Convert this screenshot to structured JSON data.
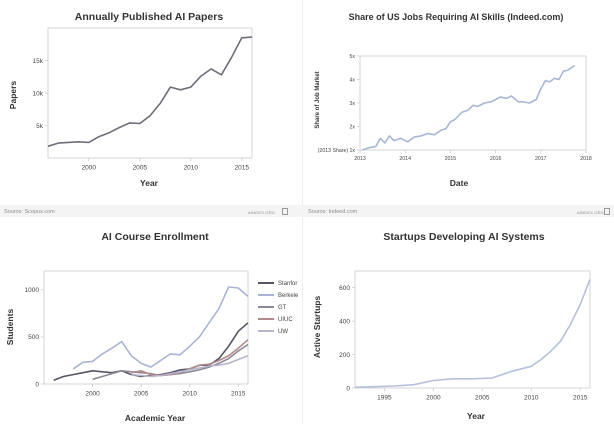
{
  "colors": {
    "axis": "#cccccc",
    "tick_text": "#444444",
    "title": "#333333",
    "papers_line": "#6e6e7a",
    "jobs_line": "#a8b6d6",
    "startups_line": "#b4c0dc",
    "stanford": "#555566",
    "berkeley": "#a8b4d6",
    "gt": "#8a8a96",
    "uiuc": "#b08a8a",
    "uw": "#b8b4cc"
  },
  "footer": {
    "left_source": "Source: Scopus.com",
    "right_source": "Source: Indeed.com",
    "credit": "AINDEX.ORG"
  },
  "chart_data": [
    {
      "id": "papers",
      "type": "line",
      "title": "Annually Published AI Papers",
      "xlabel": "Year",
      "ylabel": "Papers",
      "xlim": [
        1996,
        2016
      ],
      "ylim": [
        0,
        20000
      ],
      "xticks": [
        2000,
        2005,
        2010,
        2015
      ],
      "xtick_labels": [
        "2000",
        "2005",
        "2010",
        "2015"
      ],
      "yticks": [
        5000,
        10000,
        15000
      ],
      "ytick_labels": [
        "5k",
        "10k",
        "15k"
      ],
      "series": [
        {
          "color": "#6e6e7a",
          "x": [
            1996,
            1997,
            1998,
            1999,
            2000,
            2001,
            2002,
            2003,
            2004,
            2005,
            2006,
            2007,
            2008,
            2009,
            2010,
            2011,
            2012,
            2013,
            2014,
            2015,
            2016
          ],
          "y": [
            1800,
            2300,
            2400,
            2500,
            2400,
            3300,
            3900,
            4700,
            5400,
            5300,
            6500,
            8400,
            10900,
            10500,
            10900,
            12600,
            13700,
            12800,
            15500,
            18500,
            18600
          ]
        }
      ]
    },
    {
      "id": "jobs",
      "type": "line",
      "title": "Share of US Jobs Requiring AI Skills (Indeed.com)",
      "xlabel": "Date",
      "ylabel": "Share of Job Market",
      "xlim": [
        2013,
        2018
      ],
      "ylim": [
        1,
        5
      ],
      "xticks": [
        2013,
        2014,
        2015,
        2016,
        2017,
        2018
      ],
      "xtick_labels": [
        "2013",
        "2014",
        "2015",
        "2016",
        "2017",
        "2018"
      ],
      "yticks": [
        1,
        2,
        3,
        4,
        5
      ],
      "ytick_labels": [
        "(2013 Share) 1x",
        "2x",
        "3x",
        "4x",
        "5x"
      ],
      "series": [
        {
          "color": "#a8b6d6",
          "x": [
            2013.05,
            2013.2,
            2013.35,
            2013.45,
            2013.55,
            2013.65,
            2013.75,
            2013.9,
            2014.05,
            2014.2,
            2014.35,
            2014.5,
            2014.65,
            2014.8,
            2014.9,
            2015.0,
            2015.1,
            2015.25,
            2015.4,
            2015.5,
            2015.6,
            2015.75,
            2015.9,
            2016.0,
            2016.1,
            2016.25,
            2016.35,
            2016.5,
            2016.6,
            2016.75,
            2016.9,
            2017.0,
            2017.1,
            2017.2,
            2017.3,
            2017.4,
            2017.5,
            2017.6,
            2017.75
          ],
          "y": [
            1.0,
            1.1,
            1.15,
            1.5,
            1.3,
            1.6,
            1.4,
            1.5,
            1.35,
            1.55,
            1.6,
            1.7,
            1.65,
            1.85,
            1.9,
            2.2,
            2.3,
            2.6,
            2.7,
            2.9,
            2.85,
            3.0,
            3.05,
            3.15,
            3.25,
            3.2,
            3.3,
            3.05,
            3.05,
            3.0,
            3.15,
            3.6,
            3.95,
            3.9,
            4.05,
            4.0,
            4.35,
            4.4,
            4.6
          ]
        }
      ]
    },
    {
      "id": "courses",
      "type": "line",
      "title": "AI Course Enrollment",
      "xlabel": "Academic Year",
      "ylabel": "Students",
      "xlim": [
        1995,
        2016
      ],
      "ylim": [
        0,
        1200
      ],
      "xticks": [
        2000,
        2005,
        2010,
        2015
      ],
      "xtick_labels": [
        "2000",
        "2005",
        "2010",
        "2015"
      ],
      "yticks": [
        0,
        500,
        1000
      ],
      "ytick_labels": [
        "0",
        "500",
        "1000"
      ],
      "legend_position": "right",
      "series": [
        {
          "name": "Stanfor",
          "color": "#555566",
          "x": [
            1996,
            1997,
            1998,
            1999,
            2000,
            2001,
            2002,
            2003,
            2004,
            2005,
            2006,
            2007,
            2008,
            2009,
            2010,
            2011,
            2012,
            2013,
            2014,
            2015,
            2016
          ],
          "y": [
            40,
            80,
            100,
            120,
            140,
            130,
            120,
            140,
            100,
            80,
            90,
            100,
            120,
            150,
            160,
            200,
            200,
            270,
            400,
            560,
            650
          ]
        },
        {
          "name": "Berkeley",
          "color": "#a8b4d6",
          "x": [
            1998,
            1999,
            2000,
            2001,
            2002,
            2003,
            2004,
            2005,
            2006,
            2007,
            2008,
            2009,
            2010,
            2011,
            2012,
            2013,
            2014,
            2015,
            2016
          ],
          "y": [
            160,
            230,
            240,
            320,
            380,
            450,
            300,
            220,
            180,
            250,
            320,
            310,
            400,
            500,
            650,
            800,
            1030,
            1020,
            930
          ]
        },
        {
          "name": "GT",
          "color": "#8a8a96",
          "x": [
            2000,
            2001,
            2002,
            2003,
            2004,
            2005,
            2006,
            2007,
            2008,
            2009,
            2010,
            2011,
            2012,
            2013,
            2014,
            2015,
            2016
          ],
          "y": [
            50,
            80,
            110,
            140,
            130,
            120,
            110,
            90,
            100,
            110,
            130,
            150,
            180,
            220,
            270,
            350,
            420
          ]
        },
        {
          "name": "UIUC",
          "color": "#b08a8a",
          "x": [
            2004,
            2005,
            2006,
            2007,
            2008,
            2009,
            2010,
            2011,
            2012,
            2013,
            2014,
            2015,
            2016
          ],
          "y": [
            120,
            140,
            100,
            90,
            100,
            120,
            160,
            200,
            210,
            250,
            300,
            380,
            470
          ]
        },
        {
          "name": "UW",
          "color": "#b8b4cc",
          "x": [
            2004,
            2005,
            2006,
            2007,
            2008,
            2009,
            2010,
            2011,
            2012,
            2013,
            2014,
            2015,
            2016
          ],
          "y": [
            100,
            90,
            80,
            90,
            110,
            130,
            150,
            170,
            190,
            200,
            220,
            260,
            300
          ]
        }
      ]
    },
    {
      "id": "startups",
      "type": "line",
      "title": "Startups Developing AI Systems",
      "xlabel": "Year",
      "ylabel": "Active Startups",
      "xlim": [
        1992,
        2016
      ],
      "ylim": [
        0,
        700
      ],
      "xticks": [
        1995,
        2000,
        2005,
        2010,
        2015
      ],
      "xtick_labels": [
        "1995",
        "2000",
        "2005",
        "2010",
        "2015"
      ],
      "yticks": [
        0,
        200,
        400,
        600
      ],
      "ytick_labels": [
        "0",
        "200",
        "400",
        "600"
      ],
      "series": [
        {
          "color": "#b4c0dc",
          "x": [
            1992,
            1994,
            1996,
            1998,
            2000,
            2002,
            2004,
            2006,
            2008,
            2010,
            2011,
            2012,
            2013,
            2014,
            2015,
            2016
          ],
          "y": [
            5,
            8,
            12,
            20,
            45,
            55,
            55,
            60,
            100,
            130,
            170,
            220,
            280,
            380,
            500,
            650
          ]
        }
      ]
    }
  ]
}
